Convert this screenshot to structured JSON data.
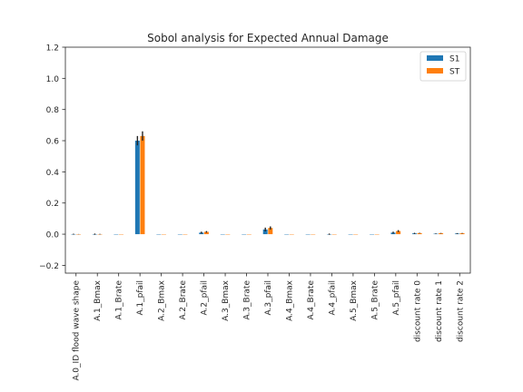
{
  "chart_data": {
    "type": "bar",
    "title": "Sobol analysis for Expected Annual Damage",
    "xlabel": "",
    "ylabel": "",
    "ylim": [
      -0.25,
      1.2
    ],
    "yticks": [
      -0.2,
      0.0,
      0.2,
      0.4,
      0.6,
      0.8,
      1.0,
      1.2
    ],
    "ytick_labels": [
      "−0.2",
      "0.0",
      "0.2",
      "0.4",
      "0.6",
      "0.8",
      "1.0",
      "1.2"
    ],
    "categories": [
      "A.0_ID flood wave shape",
      "A.1_Bmax",
      "A.1_Brate",
      "A.1_pfail",
      "A.2_Bmax",
      "A.2_Brate",
      "A.2_pfail",
      "A.3_Bmax",
      "A.3_Brate",
      "A.3_pfail",
      "A.4_Bmax",
      "A.4_Brate",
      "A.4_pfail",
      "A.5_Bmax",
      "A.5_Brate",
      "A.5_pfail",
      "discount rate 0",
      "discount rate 1",
      "discount rate 2"
    ],
    "series": [
      {
        "name": "S1",
        "color": "#1f77b4",
        "values": [
          0.0,
          0.0,
          0.0,
          0.6,
          0.0,
          0.0,
          0.01,
          0.0,
          0.0,
          0.03,
          0.0,
          0.0,
          0.0,
          0.0,
          0.0,
          0.01,
          0.005,
          0.003,
          0.004
        ],
        "errors": [
          0.003,
          0.004,
          0.0,
          0.03,
          0.0,
          0.0,
          0.006,
          0.0,
          0.0,
          0.012,
          0.0,
          0.0,
          0.004,
          0.0,
          0.0,
          0.006,
          0.004,
          0.002,
          0.003
        ]
      },
      {
        "name": "ST",
        "color": "#ff7f0e",
        "values": [
          0.0,
          0.0,
          0.0,
          0.63,
          0.0,
          0.0,
          0.015,
          0.0,
          0.0,
          0.04,
          0.0,
          0.0,
          0.0,
          0.0,
          0.0,
          0.02,
          0.007,
          0.006,
          0.006
        ],
        "errors": [
          0.001,
          0.002,
          0.0,
          0.03,
          0.0,
          0.0,
          0.005,
          0.0,
          0.0,
          0.01,
          0.0,
          0.0,
          0.0,
          0.0,
          0.0,
          0.006,
          0.002,
          0.002,
          0.002
        ]
      }
    ],
    "legend": {
      "position": "top-right",
      "entries": [
        "S1",
        "ST"
      ]
    },
    "grid": false
  }
}
